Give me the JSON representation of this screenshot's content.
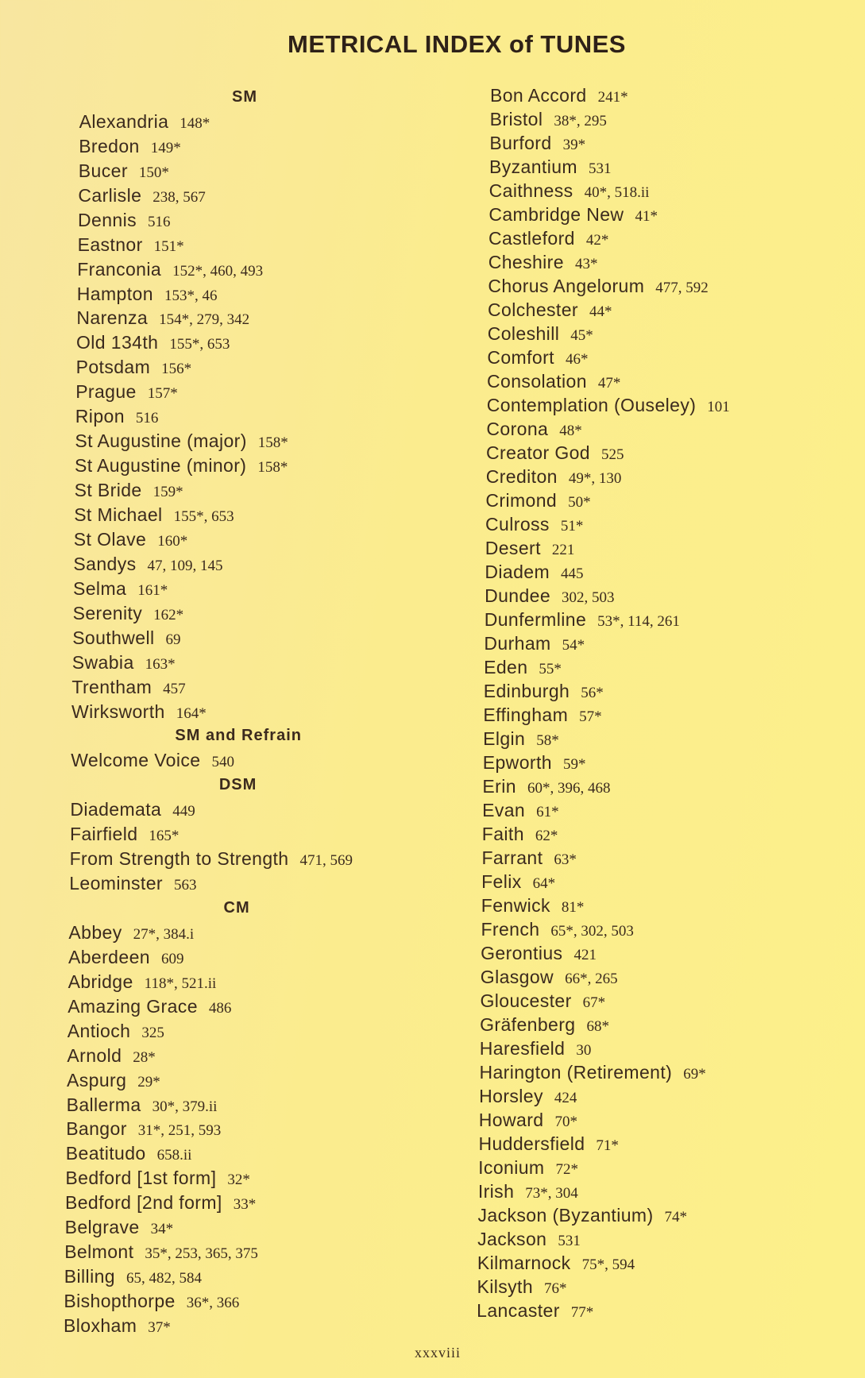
{
  "title": "METRICAL INDEX of TUNES",
  "page_number": "xxxviii",
  "left_column": [
    {
      "heading": "SM"
    },
    {
      "name": "Alexandria",
      "refs": "148*"
    },
    {
      "name": "Bredon",
      "refs": "149*"
    },
    {
      "name": "Bucer",
      "refs": "150*"
    },
    {
      "name": "Carlisle",
      "refs": "238, 567"
    },
    {
      "name": "Dennis",
      "refs": "516"
    },
    {
      "name": "Eastnor",
      "refs": "151*"
    },
    {
      "name": "Franconia",
      "refs": "152*, 460, 493"
    },
    {
      "name": "Hampton",
      "refs": "153*, 46"
    },
    {
      "name": "Narenza",
      "refs": "154*, 279, 342"
    },
    {
      "name": "Old 134th",
      "refs": "155*, 653"
    },
    {
      "name": "Potsdam",
      "refs": "156*"
    },
    {
      "name": "Prague",
      "refs": "157*"
    },
    {
      "name": "Ripon",
      "refs": "516"
    },
    {
      "name": "St Augustine (major)",
      "refs": "158*"
    },
    {
      "name": "St Augustine (minor)",
      "refs": "158*"
    },
    {
      "name": "St Bride",
      "refs": "159*"
    },
    {
      "name": "St Michael",
      "refs": "155*, 653"
    },
    {
      "name": "St Olave",
      "refs": "160*"
    },
    {
      "name": "Sandys",
      "refs": "47, 109, 145"
    },
    {
      "name": "Selma",
      "refs": "161*"
    },
    {
      "name": "Serenity",
      "refs": "162*"
    },
    {
      "name": "Southwell",
      "refs": "69"
    },
    {
      "name": "Swabia",
      "refs": "163*"
    },
    {
      "name": "Trentham",
      "refs": "457"
    },
    {
      "name": "Wirksworth",
      "refs": "164*"
    },
    {
      "heading": "SM and Refrain"
    },
    {
      "name": "Welcome Voice",
      "refs": "540"
    },
    {
      "heading": "DSM"
    },
    {
      "name": "Diademata",
      "refs": "449"
    },
    {
      "name": "Fairfield",
      "refs": "165*"
    },
    {
      "name": "From Strength to Strength",
      "refs": "471, 569"
    },
    {
      "name": "Leominster",
      "refs": "563"
    },
    {
      "heading": "CM"
    },
    {
      "name": "Abbey",
      "refs": "27*, 384.i"
    },
    {
      "name": "Aberdeen",
      "refs": "609"
    },
    {
      "name": "Abridge",
      "refs": "118*, 521.ii"
    },
    {
      "name": "Amazing Grace",
      "refs": "486"
    },
    {
      "name": "Antioch",
      "refs": "325"
    },
    {
      "name": "Arnold",
      "refs": "28*"
    },
    {
      "name": "Aspurg",
      "refs": "29*"
    },
    {
      "name": "Ballerma",
      "refs": "30*, 379.ii"
    },
    {
      "name": "Bangor",
      "refs": "31*, 251, 593"
    },
    {
      "name": "Beatitudo",
      "refs": "658.ii"
    },
    {
      "name": "Bedford [1st form]",
      "refs": "32*"
    },
    {
      "name": "Bedford [2nd form]",
      "refs": "33*"
    },
    {
      "name": "Belgrave",
      "refs": "34*"
    },
    {
      "name": "Belmont",
      "refs": "35*, 253, 365, 375"
    },
    {
      "name": "Billing",
      "refs": "65, 482, 584"
    },
    {
      "name": "Bishopthorpe",
      "refs": "36*, 366"
    },
    {
      "name": "Bloxham",
      "refs": "37*"
    }
  ],
  "right_column": [
    {
      "name": "Bon Accord",
      "refs": "241*"
    },
    {
      "name": "Bristol",
      "refs": "38*, 295"
    },
    {
      "name": "Burford",
      "refs": "39*"
    },
    {
      "name": "Byzantium",
      "refs": "531"
    },
    {
      "name": "Caithness",
      "refs": "40*, 518.ii"
    },
    {
      "name": "Cambridge New",
      "refs": "41*"
    },
    {
      "name": "Castleford",
      "refs": "42*"
    },
    {
      "name": "Cheshire",
      "refs": "43*"
    },
    {
      "name": "Chorus Angelorum",
      "refs": "477, 592"
    },
    {
      "name": "Colchester",
      "refs": "44*"
    },
    {
      "name": "Coleshill",
      "refs": "45*"
    },
    {
      "name": "Comfort",
      "refs": "46*"
    },
    {
      "name": "Consolation",
      "refs": "47*"
    },
    {
      "name": "Contemplation (Ouseley)",
      "refs": "101"
    },
    {
      "name": "Corona",
      "refs": "48*"
    },
    {
      "name": "Creator God",
      "refs": "525"
    },
    {
      "name": "Crediton",
      "refs": "49*, 130"
    },
    {
      "name": "Crimond",
      "refs": "50*"
    },
    {
      "name": "Culross",
      "refs": "51*"
    },
    {
      "name": "Desert",
      "refs": "221"
    },
    {
      "name": "Diadem",
      "refs": "445"
    },
    {
      "name": "Dundee",
      "refs": "302, 503"
    },
    {
      "name": "Dunfermline",
      "refs": "53*, 114, 261"
    },
    {
      "name": "Durham",
      "refs": "54*"
    },
    {
      "name": "Eden",
      "refs": "55*"
    },
    {
      "name": "Edinburgh",
      "refs": "56*"
    },
    {
      "name": "Effingham",
      "refs": "57*"
    },
    {
      "name": "Elgin",
      "refs": "58*"
    },
    {
      "name": "Epworth",
      "refs": "59*"
    },
    {
      "name": "Erin",
      "refs": "60*, 396, 468"
    },
    {
      "name": "Evan",
      "refs": "61*"
    },
    {
      "name": "Faith",
      "refs": "62*"
    },
    {
      "name": "Farrant",
      "refs": "63*"
    },
    {
      "name": "Felix",
      "refs": "64*"
    },
    {
      "name": "Fenwick",
      "refs": "81*"
    },
    {
      "name": "French",
      "refs": "65*, 302, 503"
    },
    {
      "name": "Gerontius",
      "refs": "421"
    },
    {
      "name": "Glasgow",
      "refs": "66*, 265"
    },
    {
      "name": "Gloucester",
      "refs": "67*"
    },
    {
      "name": "Gräfenberg",
      "refs": "68*"
    },
    {
      "name": "Haresfield",
      "refs": "30"
    },
    {
      "name": "Harington (Retirement)",
      "refs": "69*"
    },
    {
      "name": "Horsley",
      "refs": "424"
    },
    {
      "name": "Howard",
      "refs": "70*"
    },
    {
      "name": "Huddersfield",
      "refs": "71*"
    },
    {
      "name": "Iconium",
      "refs": "72*"
    },
    {
      "name": "Irish",
      "refs": "73*, 304"
    },
    {
      "name": "Jackson (Byzantium)",
      "refs": "74*"
    },
    {
      "name": "Jackson",
      "refs": "531"
    },
    {
      "name": "Kilmarnock",
      "refs": "75*, 594"
    },
    {
      "name": "Kilsyth",
      "refs": "76*"
    },
    {
      "name": "Lancaster",
      "refs": "77*"
    }
  ]
}
